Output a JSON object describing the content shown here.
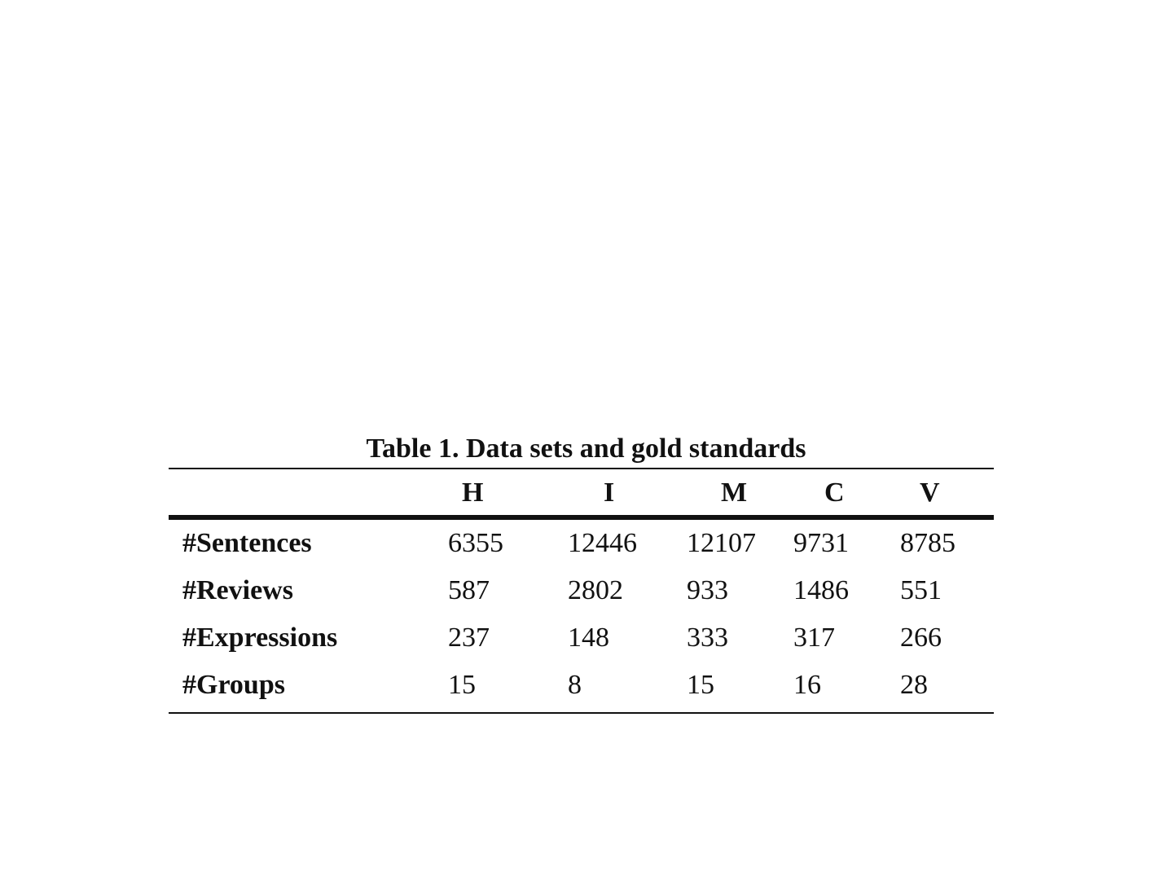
{
  "table": {
    "caption": "Table 1. Data sets and gold standards",
    "columns": [
      "",
      "H",
      "I",
      "M",
      "C",
      "V"
    ],
    "rows": [
      {
        "label": "#Sentences",
        "values": [
          "6355",
          "12446",
          "12107",
          "9731",
          "8785"
        ]
      },
      {
        "label": "#Reviews",
        "values": [
          "587",
          "2802",
          "933",
          "1486",
          "551"
        ]
      },
      {
        "label": "#Expressions",
        "values": [
          "237",
          "148",
          "333",
          "317",
          "266"
        ]
      },
      {
        "label": "#Groups",
        "values": [
          "15",
          "8",
          "15",
          "16",
          "28"
        ]
      }
    ]
  }
}
